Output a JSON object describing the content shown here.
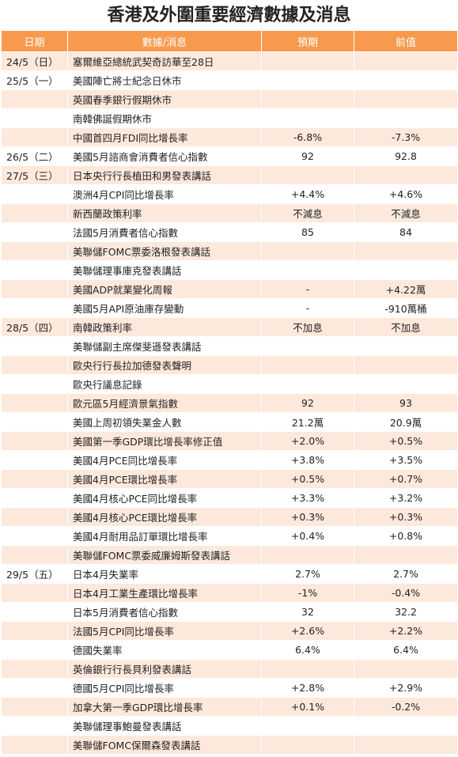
{
  "title": "香港及外圍重要經濟數據及消息",
  "table": {
    "headers": [
      "日期",
      "數據/消息",
      "預期",
      "前值"
    ],
    "rows": [
      {
        "date": "24/5（日）",
        "event": "塞爾維亞總統武契奇訪華至28日"
      },
      {
        "date": "25/5（一）",
        "event": "美國陣亡將士紀念日休市"
      },
      {
        "event": "英國春季銀行假期休市"
      },
      {
        "event": "南韓佛誕假期休市"
      },
      {
        "event": "中國首四月FDI同比增長率",
        "forecast": "-6.8%",
        "previous": "-7.3%"
      },
      {
        "date": "26/5（二）",
        "event": "美國5月諮商會消費者信心指數",
        "forecast": "92",
        "previous": "92.8"
      },
      {
        "date": "27/5（三）",
        "event": "日本央行行長植田和男發表講話"
      },
      {
        "event": "澳洲4月CPI同比增長率",
        "forecast": "+4.4%",
        "previous": "+4.6%"
      },
      {
        "event": "新西蘭政策利率",
        "forecast": "不減息",
        "previous": "不減息"
      },
      {
        "event": "法國5月消費者信心指數",
        "forecast": "85",
        "previous": "84"
      },
      {
        "event": "美聯儲FOMC票委洛根發表講話"
      },
      {
        "event": "美聯儲理事庫克發表講話"
      },
      {
        "event": "美國ADP就業變化周報",
        "forecast": "-",
        "previous": "+4.22萬"
      },
      {
        "event": "美國5月API原油庫存變動",
        "forecast": "-",
        "previous": "-910萬桶"
      },
      {
        "date": "28/5（四）",
        "event": "南韓政策利率",
        "forecast": "不加息",
        "previous": "不加息"
      },
      {
        "event": "美聯儲副主席傑斐遜發表講話"
      },
      {
        "event": "歐央行行長拉加德發表聲明"
      },
      {
        "event": "歐央行議息記錄"
      },
      {
        "event": "歐元區5月經濟景氣指數",
        "forecast": "92",
        "previous": "93"
      },
      {
        "event": "美國上周初領失業金人數",
        "forecast": "21.2萬",
        "previous": "20.9萬"
      },
      {
        "event": "美國第一季GDP環比增長率修正值",
        "forecast": "+2.0%",
        "previous": "+0.5%"
      },
      {
        "event": "美國4月PCE同比增長率",
        "forecast": "+3.8%",
        "previous": "+3.5%"
      },
      {
        "event": "美國4月PCE環比增長率",
        "forecast": "+0.5%",
        "previous": "+0.7%"
      },
      {
        "event": "美國4月核心PCE同比增長率",
        "forecast": "+3.3%",
        "previous": "+3.2%"
      },
      {
        "event": "美國4月核心PCE環比增長率",
        "forecast": "+0.3%",
        "previous": "+0.3%"
      },
      {
        "event": "美國4月耐用品訂單環比增長率",
        "forecast": "+0.4%",
        "previous": "+0.8%"
      },
      {
        "event": "美聯儲FOMC票委威廉姆斯發表講話"
      },
      {
        "date": "29/5（五）",
        "event": "日本4月失業率",
        "forecast": "2.7%",
        "previous": "2.7%"
      },
      {
        "event": "日本4月工業生產環比增長率",
        "forecast": "-1%",
        "previous": "-0.4%"
      },
      {
        "event": "日本5月消費者信心指數",
        "forecast": "32",
        "previous": "32.2"
      },
      {
        "event": "法國5月CPI同比增長率",
        "forecast": "+2.6%",
        "previous": "+2.2%"
      },
      {
        "event": "德國失業率",
        "forecast": "6.4%",
        "previous": "6.4%"
      },
      {
        "event": "英倫銀行行長貝利發表講話"
      },
      {
        "event": "德國5月CPI同比增長率",
        "forecast": "+2.8%",
        "previous": "+2.9%"
      },
      {
        "event": "加拿大第一季GDP環比增長率",
        "forecast": "+0.1%",
        "previous": "-0.2%"
      },
      {
        "event": "美聯儲理事鮑曼發表講話"
      },
      {
        "event": "美聯儲FOMC保爾森發表講話"
      }
    ]
  }
}
